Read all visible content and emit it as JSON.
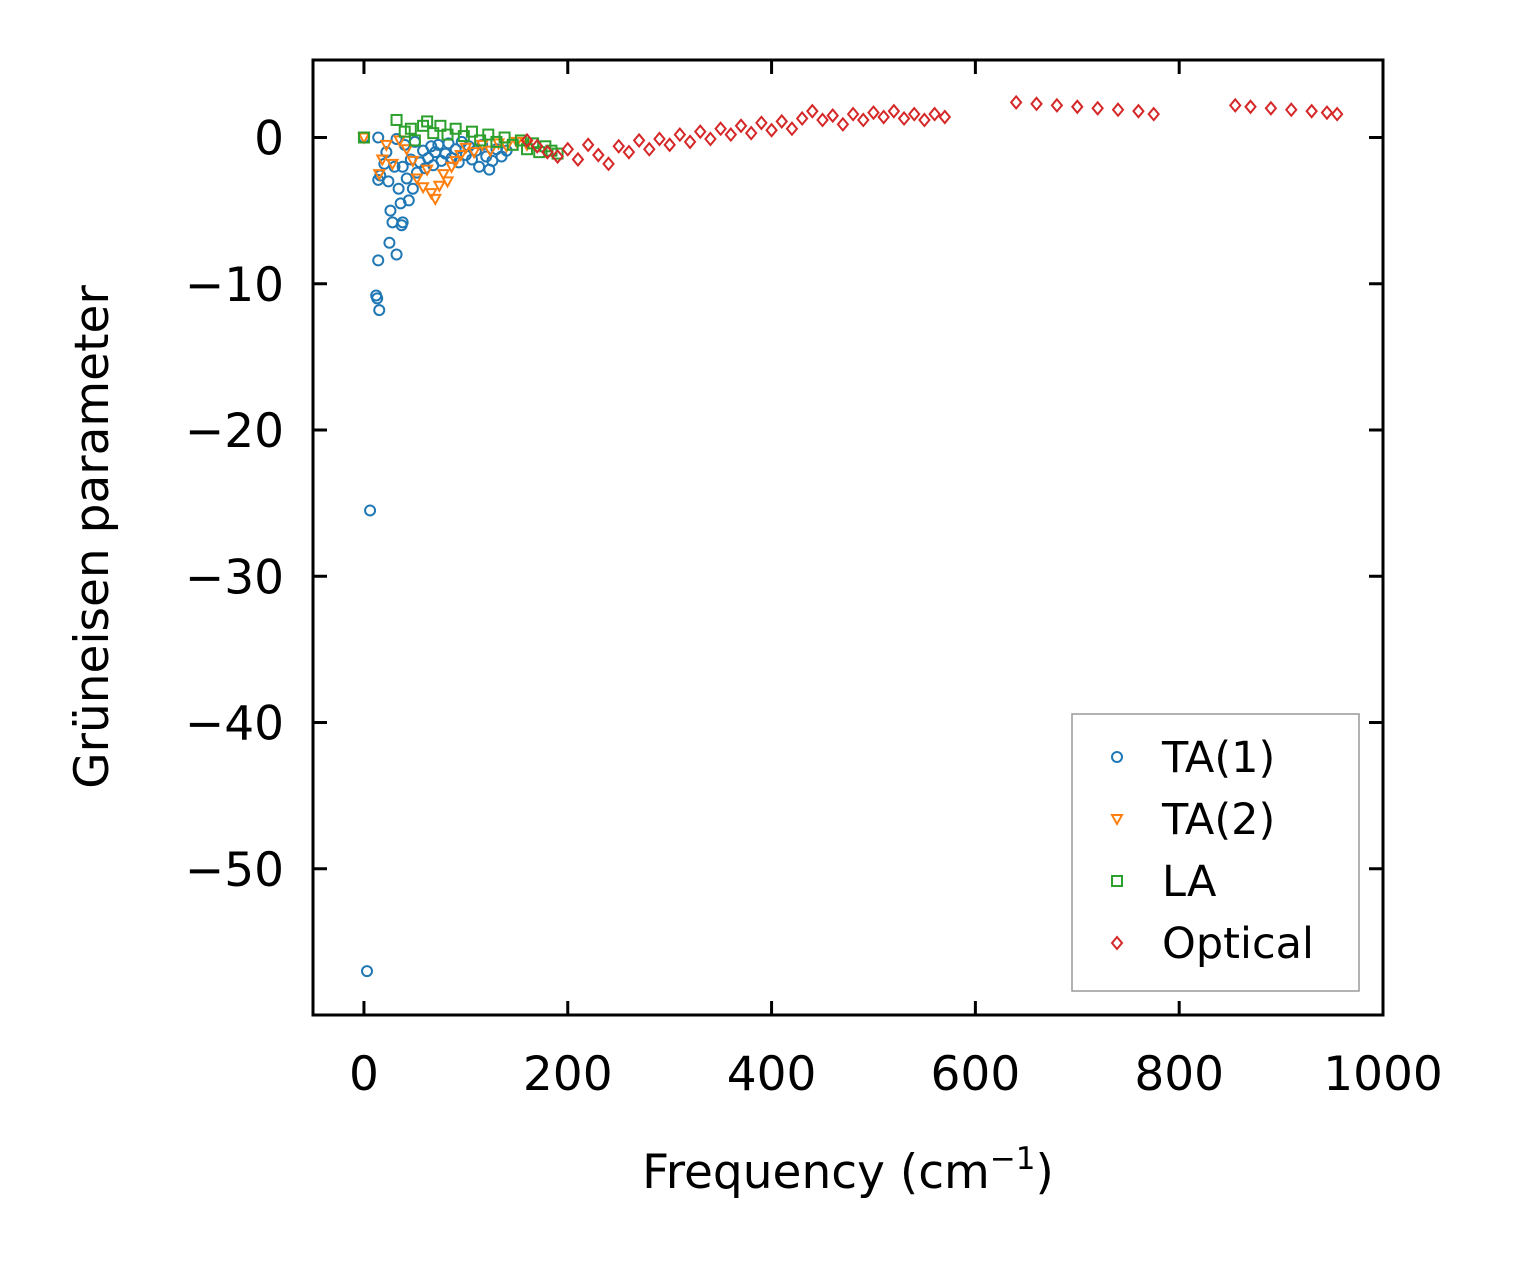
{
  "chart_data": {
    "type": "scatter",
    "title": "",
    "xlabel": "Frequency (cm",
    "xlabel_sup": "−1",
    "xlabel_close": ")",
    "ylabel": "Grüneisen parameter",
    "xlim": [
      -50,
      1000
    ],
    "ylim": [
      -60,
      5.3
    ],
    "xticks": [
      {
        "value": 0,
        "label": "0"
      },
      {
        "value": 200,
        "label": "200"
      },
      {
        "value": 400,
        "label": "400"
      },
      {
        "value": 600,
        "label": "600"
      },
      {
        "value": 800,
        "label": "800"
      },
      {
        "value": 1000,
        "label": "1000"
      }
    ],
    "yticks": [
      {
        "value": 0,
        "label": "0"
      },
      {
        "value": -10,
        "label": "−10"
      },
      {
        "value": -20,
        "label": "−20"
      },
      {
        "value": -30,
        "label": "−30"
      },
      {
        "value": -40,
        "label": "−40"
      },
      {
        "value": -50,
        "label": "−50"
      }
    ],
    "grid": false,
    "legend_position": "bottom-right",
    "series": [
      {
        "name": "TA(1)",
        "marker": "circle",
        "color": "#1f77b4",
        "points": [
          [
            0,
            0
          ],
          [
            3,
            -57
          ],
          [
            6,
            -25.5
          ],
          [
            12,
            -10.8
          ],
          [
            13,
            -11
          ],
          [
            15,
            -11.8
          ],
          [
            14,
            -8.4
          ],
          [
            14,
            -2.9
          ],
          [
            14,
            0
          ],
          [
            16,
            -2.6
          ],
          [
            20,
            -1.8
          ],
          [
            22,
            -1
          ],
          [
            24,
            -3
          ],
          [
            25,
            -7.2
          ],
          [
            26,
            -5
          ],
          [
            28,
            -5.8
          ],
          [
            32,
            -8
          ],
          [
            30,
            -2
          ],
          [
            32,
            -0.1
          ],
          [
            34,
            -3.5
          ],
          [
            36,
            -4.5
          ],
          [
            37,
            -6
          ],
          [
            38,
            -5.8
          ],
          [
            38,
            -2
          ],
          [
            40,
            -0.5
          ],
          [
            42,
            -2.8
          ],
          [
            44,
            -4.3
          ],
          [
            46,
            -1.5
          ],
          [
            48,
            -3.5
          ],
          [
            50,
            -0.3
          ],
          [
            52,
            -2.4
          ],
          [
            55,
            -1.7
          ],
          [
            58,
            -0.9
          ],
          [
            60,
            -2.1
          ],
          [
            63,
            -1.4
          ],
          [
            66,
            -0.6
          ],
          [
            68,
            -1.9
          ],
          [
            70,
            -1
          ],
          [
            73,
            -0.5
          ],
          [
            76,
            -1.6
          ],
          [
            80,
            -1.1
          ],
          [
            83,
            -0.4
          ],
          [
            86,
            -1.4
          ],
          [
            90,
            -0.8
          ],
          [
            93,
            -1.7
          ],
          [
            96,
            -0.3
          ],
          [
            100,
            -1.2
          ],
          [
            103,
            -0.6
          ],
          [
            106,
            -1.5
          ],
          [
            110,
            -0.9
          ],
          [
            113,
            -2
          ],
          [
            116,
            -0.5
          ],
          [
            120,
            -1.3
          ],
          [
            123,
            -2.2
          ],
          [
            126,
            -1.6
          ],
          [
            130,
            -0.8
          ],
          [
            135,
            -1.3
          ],
          [
            140,
            -0.9
          ]
        ]
      },
      {
        "name": "TA(2)",
        "marker": "triangle-down",
        "color": "#ff7f0e",
        "points": [
          [
            0,
            0
          ],
          [
            15,
            -2.5
          ],
          [
            18,
            -1.5
          ],
          [
            22,
            -0.5
          ],
          [
            28,
            -1.8
          ],
          [
            35,
            -0.2
          ],
          [
            42,
            -0.8
          ],
          [
            48,
            -1.6
          ],
          [
            52,
            -2.8
          ],
          [
            58,
            -3.4
          ],
          [
            62,
            -2.2
          ],
          [
            66,
            -3.8
          ],
          [
            70,
            -4.2
          ],
          [
            74,
            -3.3
          ],
          [
            78,
            -2.5
          ],
          [
            82,
            -3
          ],
          [
            86,
            -2
          ],
          [
            90,
            -1.6
          ],
          [
            95,
            -1.2
          ],
          [
            100,
            -0.7
          ],
          [
            108,
            -1
          ],
          [
            116,
            -0.5
          ],
          [
            124,
            -0.9
          ],
          [
            132,
            -0.4
          ],
          [
            140,
            -0.6
          ],
          [
            150,
            -0.3
          ],
          [
            160,
            -0.5
          ]
        ]
      },
      {
        "name": "LA",
        "marker": "square",
        "color": "#2ca02c",
        "points": [
          [
            0,
            0
          ],
          [
            32,
            1.2
          ],
          [
            40,
            0.4
          ],
          [
            46,
            0.6
          ],
          [
            50,
            -0.2
          ],
          [
            58,
            0.8
          ],
          [
            62,
            1.1
          ],
          [
            68,
            0.3
          ],
          [
            75,
            0.8
          ],
          [
            82,
            0.2
          ],
          [
            90,
            0.6
          ],
          [
            98,
            0.1
          ],
          [
            106,
            0.4
          ],
          [
            114,
            -0.2
          ],
          [
            122,
            0.2
          ],
          [
            130,
            -0.3
          ],
          [
            138,
            0
          ],
          [
            146,
            -0.5
          ],
          [
            154,
            -0.2
          ],
          [
            160,
            -0.8
          ],
          [
            166,
            -0.4
          ],
          [
            172,
            -1
          ],
          [
            178,
            -0.6
          ],
          [
            184,
            -0.9
          ],
          [
            190,
            -1.1
          ]
        ]
      },
      {
        "name": "Optical",
        "marker": "diamond",
        "color": "#d62728",
        "points": [
          [
            160,
            -0.2
          ],
          [
            170,
            -0.6
          ],
          [
            180,
            -1
          ],
          [
            190,
            -1.3
          ],
          [
            200,
            -0.8
          ],
          [
            210,
            -1.5
          ],
          [
            220,
            -0.5
          ],
          [
            230,
            -1.2
          ],
          [
            240,
            -1.8
          ],
          [
            250,
            -0.6
          ],
          [
            260,
            -1
          ],
          [
            270,
            -0.2
          ],
          [
            280,
            -0.8
          ],
          [
            290,
            -0.1
          ],
          [
            300,
            -0.5
          ],
          [
            310,
            0.2
          ],
          [
            320,
            -0.3
          ],
          [
            330,
            0.4
          ],
          [
            340,
            -0.1
          ],
          [
            350,
            0.6
          ],
          [
            360,
            0.2
          ],
          [
            370,
            0.8
          ],
          [
            380,
            0.3
          ],
          [
            390,
            1
          ],
          [
            400,
            0.5
          ],
          [
            410,
            1.1
          ],
          [
            420,
            0.6
          ],
          [
            430,
            1.3
          ],
          [
            440,
            1.8
          ],
          [
            450,
            1.2
          ],
          [
            460,
            1.5
          ],
          [
            470,
            0.9
          ],
          [
            480,
            1.6
          ],
          [
            490,
            1.2
          ],
          [
            500,
            1.7
          ],
          [
            510,
            1.4
          ],
          [
            520,
            1.8
          ],
          [
            530,
            1.3
          ],
          [
            540,
            1.6
          ],
          [
            550,
            1.2
          ],
          [
            560,
            1.6
          ],
          [
            570,
            1.4
          ],
          [
            640,
            2.4
          ],
          [
            660,
            2.3
          ],
          [
            680,
            2.2
          ],
          [
            700,
            2.1
          ],
          [
            720,
            2
          ],
          [
            740,
            1.9
          ],
          [
            760,
            1.8
          ],
          [
            775,
            1.6
          ],
          [
            855,
            2.2
          ],
          [
            870,
            2.1
          ],
          [
            890,
            2
          ],
          [
            910,
            1.9
          ],
          [
            930,
            1.8
          ],
          [
            945,
            1.7
          ],
          [
            955,
            1.6
          ]
        ]
      }
    ]
  }
}
